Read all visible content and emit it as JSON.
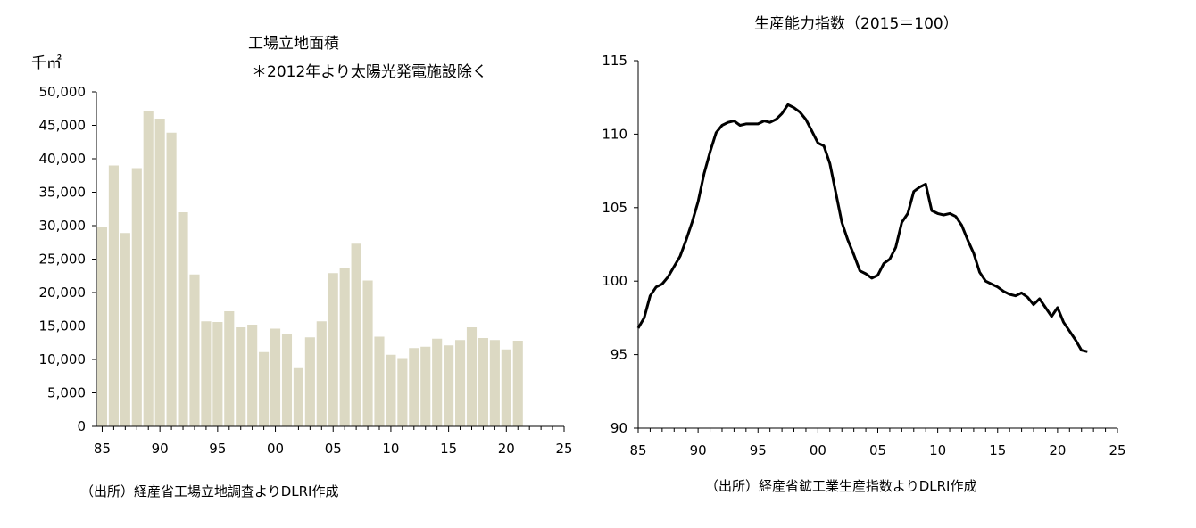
{
  "chart_data": [
    {
      "type": "bar",
      "title": "工場立地面積",
      "subtitle": "＊2012年より太陽光発電施設除く",
      "ylabel": "千㎡",
      "xlabel": "",
      "source": "（出所）経産省工場立地調査よりDLRI作成",
      "bar_color": "#dcd9c3",
      "x": [
        85,
        86,
        87,
        88,
        89,
        90,
        91,
        92,
        93,
        94,
        95,
        96,
        97,
        98,
        99,
        100,
        101,
        102,
        103,
        104,
        105,
        106,
        107,
        108,
        109,
        110,
        111,
        112,
        113,
        114,
        115,
        116,
        117,
        118,
        119,
        120,
        121
      ],
      "values": [
        29800,
        39000,
        28900,
        38600,
        47200,
        46000,
        43900,
        32000,
        22700,
        15700,
        15600,
        17200,
        14800,
        15200,
        11100,
        14600,
        13800,
        8700,
        13300,
        15700,
        22900,
        23600,
        27300,
        21800,
        13400,
        10700,
        10200,
        11700,
        11900,
        13100,
        12100,
        12900,
        14800,
        13200,
        12900,
        11500,
        12800
      ],
      "xticks": [
        "85",
        "90",
        "95",
        "00",
        "05",
        "10",
        "15",
        "20",
        "25"
      ],
      "xtick_values": [
        85,
        90,
        95,
        100,
        105,
        110,
        115,
        120,
        125
      ],
      "xlim": [
        84.5,
        125
      ],
      "ylim": [
        0,
        50000
      ],
      "yticks": [
        "0",
        "5,000",
        "10,000",
        "15,000",
        "20,000",
        "25,000",
        "30,000",
        "35,000",
        "40,000",
        "45,000",
        "50,000"
      ]
    },
    {
      "type": "line",
      "title": "生産能力指数（2015＝100）",
      "source": "（出所）経産省鉱工業生産指数よりDLRI作成",
      "line_color": "#000000",
      "series": [
        {
          "x": [
            85.0,
            85.5,
            86.0,
            86.5,
            87.0,
            87.5,
            88.0,
            88.5,
            89.0,
            89.5,
            90.0,
            90.5,
            91.0,
            91.5,
            92.0,
            92.5,
            93.0,
            93.5,
            94.0,
            94.5,
            95.0,
            95.5,
            96.0,
            96.5,
            97.0,
            97.5,
            98.0,
            98.5,
            99.0,
            99.5,
            100.0,
            100.5,
            101.0,
            101.5,
            102.0,
            102.5,
            103.0,
            103.5,
            104.0,
            104.5,
            105.0,
            105.5,
            106.0,
            106.5,
            107.0,
            107.5,
            108.0,
            108.5,
            109.0,
            109.5,
            110.0,
            110.5,
            111.0,
            111.5,
            112.0,
            112.5,
            113.0,
            113.5,
            114.0,
            114.5,
            115.0,
            115.5,
            116.0,
            116.5,
            117.0,
            117.5,
            118.0,
            118.5,
            119.0,
            119.5,
            120.0,
            120.5,
            121.0,
            121.5,
            122.0,
            122.5
          ],
          "values": [
            96.8,
            97.5,
            99.0,
            99.6,
            99.8,
            100.3,
            101.0,
            101.7,
            102.8,
            104.0,
            105.4,
            107.3,
            108.8,
            110.1,
            110.6,
            110.8,
            110.9,
            110.6,
            110.7,
            110.7,
            110.7,
            110.9,
            110.8,
            111.0,
            111.4,
            112.0,
            111.8,
            111.5,
            111.0,
            110.2,
            109.4,
            109.2,
            108.0,
            106.0,
            104.0,
            102.8,
            101.8,
            100.7,
            100.5,
            100.2,
            100.4,
            101.2,
            101.5,
            102.3,
            104.0,
            104.6,
            106.1,
            106.4,
            106.6,
            104.8,
            104.6,
            104.5,
            104.6,
            104.4,
            103.8,
            102.8,
            101.9,
            100.6,
            100.0,
            99.8,
            99.6,
            99.3,
            99.1,
            99.0,
            99.2,
            98.9,
            98.4,
            98.8,
            98.2,
            97.6,
            98.2,
            97.2,
            96.6,
            96.0,
            95.3,
            95.2
          ]
        }
      ],
      "xticks": [
        "85",
        "90",
        "95",
        "00",
        "05",
        "10",
        "15",
        "20",
        "25"
      ],
      "xtick_values": [
        85,
        90,
        95,
        100,
        105,
        110,
        115,
        120,
        125
      ],
      "xlim": [
        85,
        125
      ],
      "ylim": [
        90,
        115
      ],
      "yticks": [
        "90",
        "95",
        "100",
        "105",
        "110",
        "115"
      ]
    }
  ]
}
